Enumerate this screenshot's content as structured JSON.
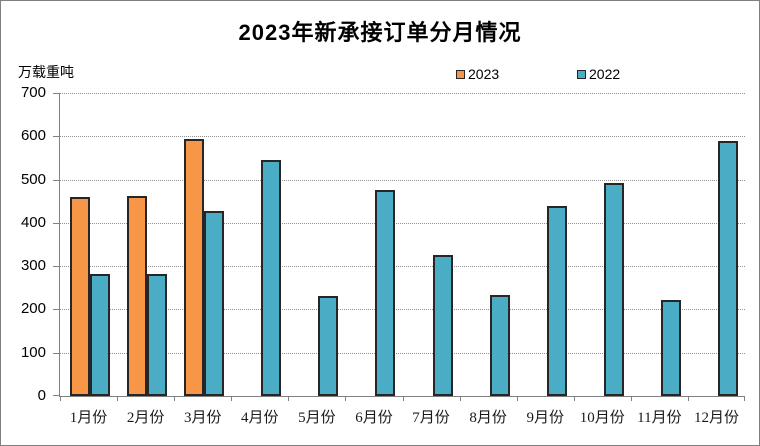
{
  "chart_data": {
    "type": "bar",
    "title": "2023年新承接订单分月情况",
    "ylabel": "万载重吨",
    "categories": [
      "1月份",
      "2月份",
      "3月份",
      "4月份",
      "5月份",
      "6月份",
      "7月份",
      "8月份",
      "9月份",
      "10月份",
      "11月份",
      "12月份"
    ],
    "series": [
      {
        "name": "2023",
        "color": "#F79646",
        "values": [
          460,
          462,
          593,
          null,
          null,
          null,
          null,
          null,
          null,
          null,
          null,
          null
        ]
      },
      {
        "name": "2022",
        "color": "#4BACC6",
        "values": [
          281,
          282,
          428,
          546,
          230,
          476,
          326,
          233,
          440,
          493,
          222,
          590
        ]
      }
    ],
    "ylim": [
      0,
      700
    ],
    "yticks": [
      0,
      100,
      200,
      300,
      400,
      500,
      600,
      700
    ],
    "grid": "horizontal-dotted",
    "legend_position": "top",
    "bar_border_color": "#262626",
    "axis_color": "#808080"
  }
}
